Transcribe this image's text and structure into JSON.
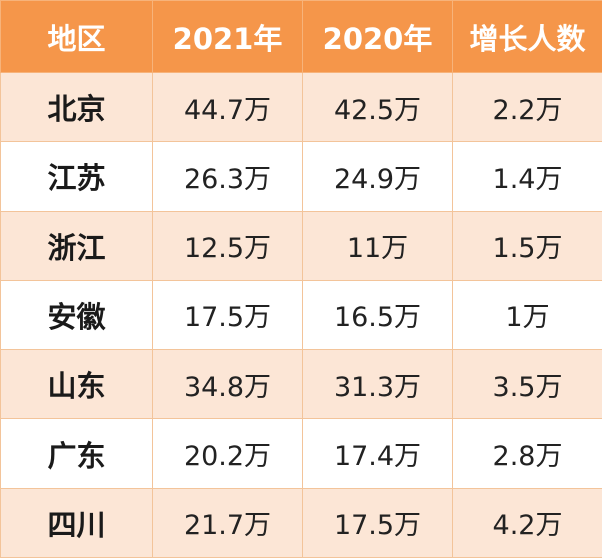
{
  "colors": {
    "header_bg": "#f5964a",
    "header_text": "#ffffff",
    "row_shade": "#fce6d6",
    "row_plain": "#ffffff",
    "border": "#f3c49a"
  },
  "table": {
    "headers": [
      "地区",
      "2021年",
      "2020年",
      "增长人数"
    ],
    "rows": [
      [
        "北京",
        "44.7万",
        "42.5万",
        "2.2万"
      ],
      [
        "江苏",
        "26.3万",
        "24.9万",
        "1.4万"
      ],
      [
        "浙江",
        "12.5万",
        "11万",
        "1.5万"
      ],
      [
        "安徽",
        "17.5万",
        "16.5万",
        "1万"
      ],
      [
        "山东",
        "34.8万",
        "31.3万",
        "3.5万"
      ],
      [
        "广东",
        "20.2万",
        "17.4万",
        "2.8万"
      ],
      [
        "四川",
        "21.7万",
        "17.5万",
        "4.2万"
      ]
    ]
  }
}
